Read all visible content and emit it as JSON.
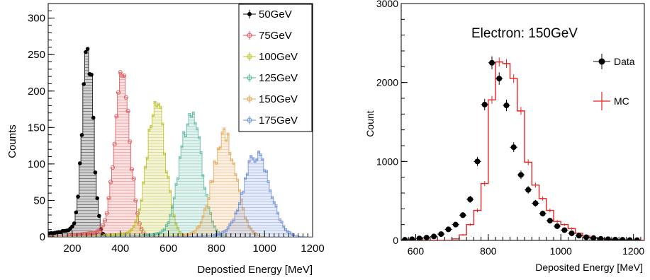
{
  "chart_data": [
    {
      "type": "histogram",
      "xlabel": "Depostied Energy [MeV]",
      "ylabel": "Counts",
      "xlim": [
        100,
        1200
      ],
      "ylim": [
        0,
        320
      ],
      "x_ticks": [
        200,
        400,
        600,
        800,
        1000,
        1200
      ],
      "y_ticks": [
        0,
        50,
        100,
        150,
        200,
        250,
        300
      ],
      "legend_position": "top-right",
      "series": [
        {
          "name": "50GeV",
          "color": "#000000",
          "marker": "filled-circle",
          "mean": 265,
          "sigma": 22,
          "peak": 258
        },
        {
          "name": "75GeV",
          "color": "#e15759",
          "marker": "open-circle",
          "mean": 410,
          "sigma": 32,
          "peak": 205
        },
        {
          "name": "100GeV",
          "color": "#bcbd22",
          "marker": "open-triangle",
          "mean": 550,
          "sigma": 38,
          "peak": 182
        },
        {
          "name": "125GeV",
          "color": "#59b8a0",
          "marker": "open-square",
          "mean": 695,
          "sigma": 44,
          "peak": 165
        },
        {
          "name": "150GeV",
          "color": "#e3a857",
          "marker": "open-cross",
          "mean": 835,
          "sigma": 48,
          "peak": 135
        },
        {
          "name": "175GeV",
          "color": "#6f8fd8",
          "marker": "open-star",
          "mean": 970,
          "sigma": 55,
          "peak": 108
        }
      ]
    },
    {
      "type": "histogram",
      "title": "Electron: 150GeV",
      "xlabel": "Deposited Energy [MeV]",
      "ylabel": "Count",
      "xlim": [
        560,
        1230
      ],
      "ylim": [
        0,
        3000
      ],
      "x_ticks": [
        600,
        800,
        1000,
        1200
      ],
      "y_ticks": [
        0,
        1000,
        2000,
        3000
      ],
      "legend_position": "top-right",
      "series": [
        {
          "name": "Data",
          "color": "#000000",
          "x": [
            570,
            590,
            610,
            630,
            650,
            670,
            690,
            710,
            730,
            750,
            770,
            790,
            810,
            830,
            850,
            870,
            890,
            910,
            930,
            950,
            970,
            990,
            1010,
            1030,
            1050,
            1070,
            1090,
            1110,
            1130,
            1150,
            1170,
            1190,
            1210
          ],
          "y": [
            8,
            15,
            25,
            35,
            50,
            80,
            140,
            200,
            320,
            520,
            1000,
            1720,
            2250,
            2050,
            1710,
            1180,
            830,
            640,
            470,
            340,
            250,
            180,
            130,
            90,
            60,
            40,
            30,
            20,
            15,
            10,
            8,
            5,
            3
          ]
        },
        {
          "name": "MC",
          "color": "#e8221f",
          "bin_edges": [
            560,
            700,
            720,
            740,
            760,
            780,
            800,
            820,
            840,
            860,
            880,
            900,
            920,
            940,
            960,
            980,
            1000,
            1020,
            1040,
            1060,
            1080,
            1100,
            1120,
            1140,
            1160,
            1180,
            1200,
            1230
          ],
          "counts": [
            0,
            20,
            70,
            200,
            380,
            720,
            1780,
            2260,
            2240,
            2050,
            1640,
            990,
            700,
            530,
            380,
            240,
            200,
            150,
            90,
            55,
            35,
            25,
            15,
            10,
            6,
            4,
            2
          ]
        }
      ]
    }
  ]
}
